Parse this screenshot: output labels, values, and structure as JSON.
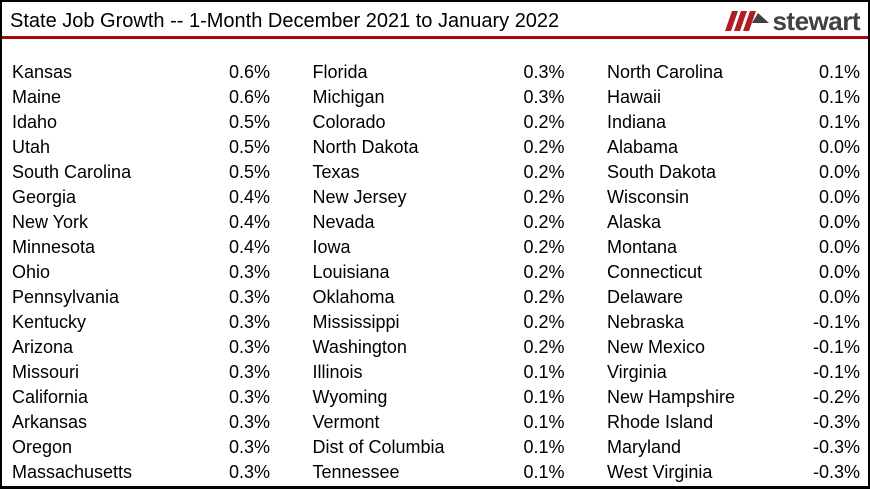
{
  "header": {
    "title": "State Job Growth -- 1-Month December 2021 to January 2022",
    "logo": {
      "text": "stewart",
      "mark_icon": "stewart-triple-slash-arrow"
    }
  },
  "colors": {
    "header_rule": "#A50B0E",
    "logo_stripes": "#B01E24",
    "logo_gray": "#414042",
    "frame_border": "#000000",
    "text_black": "#000000",
    "background": "#FFFFFF"
  },
  "chart_data": {
    "type": "table",
    "title": "State Job Growth -- 1-Month December 2021 to January 2022",
    "unit": "percent",
    "columns": [
      {
        "rows": [
          {
            "state": "Kansas",
            "value": "0.6%"
          },
          {
            "state": "Maine",
            "value": "0.6%"
          },
          {
            "state": "Idaho",
            "value": "0.5%"
          },
          {
            "state": "Utah",
            "value": "0.5%"
          },
          {
            "state": "South Carolina",
            "value": "0.5%"
          },
          {
            "state": "Georgia",
            "value": "0.4%"
          },
          {
            "state": "New York",
            "value": "0.4%"
          },
          {
            "state": "Minnesota",
            "value": "0.4%"
          },
          {
            "state": "Ohio",
            "value": "0.3%"
          },
          {
            "state": "Pennsylvania",
            "value": "0.3%"
          },
          {
            "state": "Kentucky",
            "value": "0.3%"
          },
          {
            "state": "Arizona",
            "value": "0.3%"
          },
          {
            "state": "Missouri",
            "value": "0.3%"
          },
          {
            "state": "California",
            "value": "0.3%"
          },
          {
            "state": "Arkansas",
            "value": "0.3%"
          },
          {
            "state": "Oregon",
            "value": "0.3%"
          },
          {
            "state": "Massachusetts",
            "value": "0.3%"
          }
        ]
      },
      {
        "rows": [
          {
            "state": "Florida",
            "value": "0.3%"
          },
          {
            "state": "Michigan",
            "value": "0.3%"
          },
          {
            "state": "Colorado",
            "value": "0.2%"
          },
          {
            "state": "North Dakota",
            "value": "0.2%"
          },
          {
            "state": "Texas",
            "value": "0.2%"
          },
          {
            "state": "New Jersey",
            "value": "0.2%"
          },
          {
            "state": "Nevada",
            "value": "0.2%"
          },
          {
            "state": "Iowa",
            "value": "0.2%"
          },
          {
            "state": "Louisiana",
            "value": "0.2%"
          },
          {
            "state": "Oklahoma",
            "value": "0.2%"
          },
          {
            "state": "Mississippi",
            "value": "0.2%"
          },
          {
            "state": "Washington",
            "value": "0.2%"
          },
          {
            "state": "Illinois",
            "value": "0.1%"
          },
          {
            "state": "Wyoming",
            "value": "0.1%"
          },
          {
            "state": "Vermont",
            "value": "0.1%"
          },
          {
            "state": "Dist of Columbia",
            "value": "0.1%"
          },
          {
            "state": "Tennessee",
            "value": "0.1%"
          }
        ]
      },
      {
        "rows": [
          {
            "state": "North Carolina",
            "value": "0.1%"
          },
          {
            "state": "Hawaii",
            "value": "0.1%"
          },
          {
            "state": "Indiana",
            "value": "0.1%"
          },
          {
            "state": "Alabama",
            "value": "0.0%"
          },
          {
            "state": "South Dakota",
            "value": "0.0%"
          },
          {
            "state": "Wisconsin",
            "value": "0.0%"
          },
          {
            "state": "Alaska",
            "value": "0.0%"
          },
          {
            "state": "Montana",
            "value": "0.0%"
          },
          {
            "state": "Connecticut",
            "value": "0.0%"
          },
          {
            "state": "Delaware",
            "value": "0.0%"
          },
          {
            "state": "Nebraska",
            "value": "-0.1%"
          },
          {
            "state": "New Mexico",
            "value": "-0.1%"
          },
          {
            "state": "Virginia",
            "value": "-0.1%"
          },
          {
            "state": "New Hampshire",
            "value": "-0.2%"
          },
          {
            "state": "Rhode Island",
            "value": "-0.3%"
          },
          {
            "state": "Maryland",
            "value": "-0.3%"
          },
          {
            "state": "West Virginia",
            "value": "-0.3%"
          }
        ]
      }
    ]
  }
}
